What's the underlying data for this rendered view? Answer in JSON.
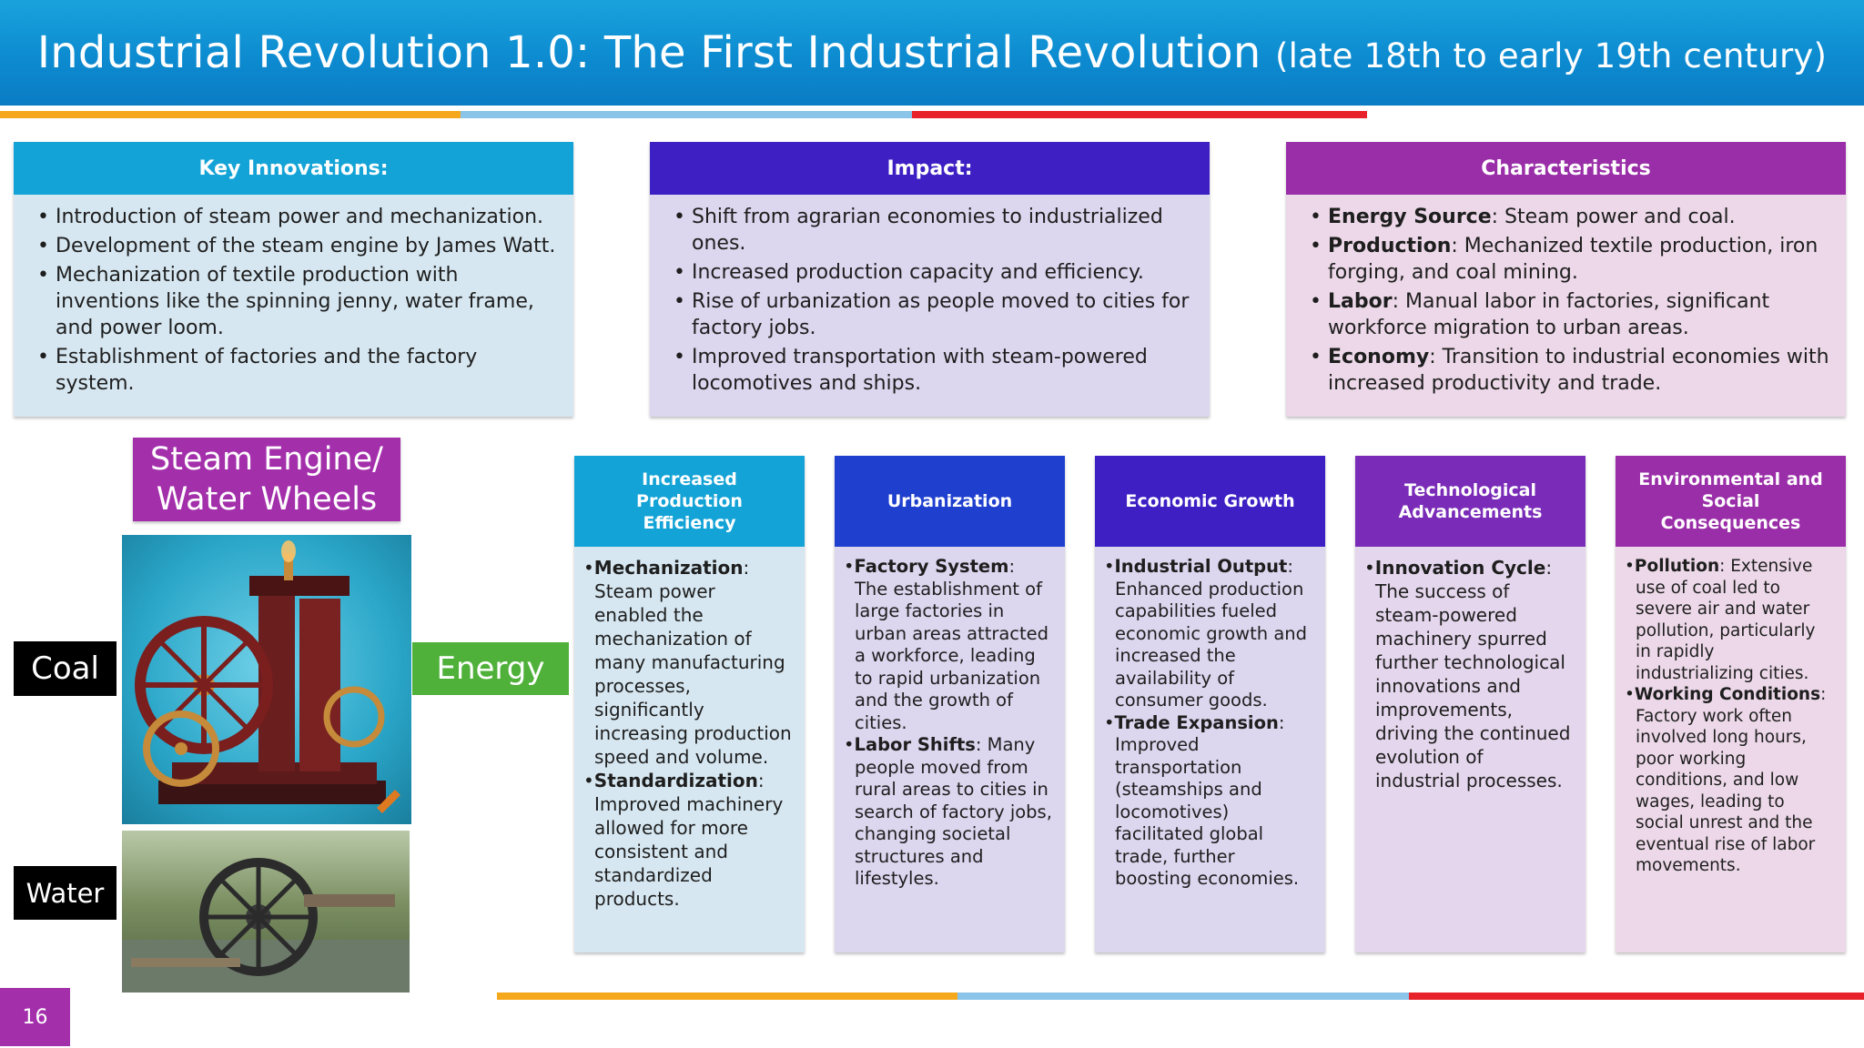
{
  "header": {
    "title_main": "Industrial Revolution 1.0: The First Industrial Revolution",
    "title_sub": "(late 18th to early 19th century)"
  },
  "top_boxes": [
    {
      "title": "Key Innovations:",
      "items": [
        "Introduction of steam power and mechanization.",
        "Development of the steam engine by James Watt.",
        "Mechanization of textile production with inventions like the spinning jenny, water frame, and power loom.",
        "Establishment of factories and the factory system."
      ]
    },
    {
      "title": "Impact:",
      "items": [
        "Shift from agrarian economies to industrialized ones.",
        "Increased production capacity and efficiency.",
        "Rise of urbanization as people moved to cities for factory jobs.",
        "Improved transportation with steam-powered locomotives and ships."
      ]
    },
    {
      "title": "Characteristics",
      "items": [
        {
          "term": "Energy Source",
          "text": ": Steam power and coal."
        },
        {
          "term": "Production",
          "text": ": Mechanized textile production, iron forging, and coal mining."
        },
        {
          "term": "Labor",
          "text": ": Manual labor in factories, significant workforce migration to urban areas."
        },
        {
          "term": "Economy",
          "text": ": Transition to industrial economies with increased productivity and trade."
        }
      ]
    }
  ],
  "diagram": {
    "engine_label_line1": "Steam Engine/",
    "engine_label_line2": "Water Wheels",
    "coal": "Coal",
    "water": "Water",
    "energy": "Energy"
  },
  "columns": [
    {
      "title": "Increased Production Efficiency",
      "entries": [
        {
          "term": "Mechanization",
          "text": ": Steam power enabled the mechanization of many manufacturing processes, significantly increasing production speed and volume."
        },
        {
          "term": "Standardization",
          "text": ": Improved machinery allowed for more consistent and standardized products."
        }
      ]
    },
    {
      "title": "Urbanization",
      "entries": [
        {
          "term": "Factory System",
          "text": ": The establishment of large factories in urban areas attracted a workforce, leading to rapid urbanization and the growth of cities."
        },
        {
          "term": "Labor Shifts",
          "text": ": Many people moved from rural areas to cities in search of factory jobs, changing societal structures and lifestyles."
        }
      ]
    },
    {
      "title": "Economic Growth",
      "entries": [
        {
          "term": "Industrial Output",
          "text": ": Enhanced production capabilities fueled economic growth and increased the availability of consumer goods."
        },
        {
          "term": "Trade Expansion",
          "text": ": Improved transportation (steamships and locomotives) facilitated global trade, further boosting economies."
        }
      ]
    },
    {
      "title": "Technological Advancements",
      "entries": [
        {
          "term": "Innovation Cycle",
          "text": ": The success of steam-powered machinery spurred further technological innovations and improvements, driving the continued evolution of industrial processes."
        }
      ]
    },
    {
      "title": "Environmental and Social Consequences",
      "entries": [
        {
          "term": "Pollution",
          "text": ": Extensive use of coal led to severe air and water pollution, particularly in rapidly industrializing cities."
        },
        {
          "term": "Working Conditions",
          "text": ": Factory work often involved long hours, poor working conditions, and low wages, leading to social unrest and the eventual rise of labor movements."
        }
      ]
    }
  ],
  "footer": {
    "page_number": "16"
  },
  "colors": {
    "blue_header": "#14a3d6",
    "indigo_header": "#3d1fc4",
    "purple_header": "#9a2ea8",
    "blue_box": "#d6e7f1",
    "lavender_box": "#dcd6ee",
    "pink_box": "#ecd8e8",
    "green": "#4fb13a",
    "stripe_orange": "#f5a81c",
    "stripe_lightblue": "#8ac4e8",
    "stripe_red": "#e8222a"
  }
}
